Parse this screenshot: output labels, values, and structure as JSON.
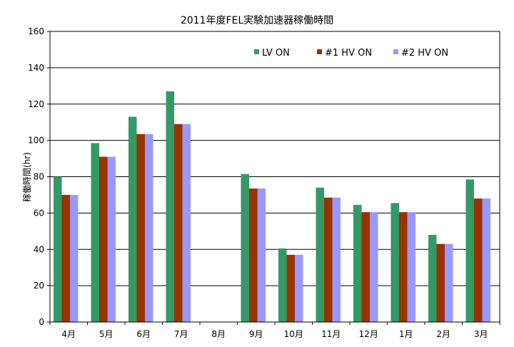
{
  "chart_data": {
    "type": "bar",
    "title": "2011年度FEL実験加速器稼働時間",
    "xlabel": "",
    "ylabel": "稼働時間(hr)",
    "ylim": [
      0,
      160
    ],
    "yticks": [
      "0",
      "20",
      "40",
      "60",
      "80",
      "100",
      "120",
      "140",
      "160"
    ],
    "grid": true,
    "legend_position": "top-right",
    "categories": [
      "4月",
      "5月",
      "6月",
      "7月",
      "8月",
      "9月",
      "10月",
      "11月",
      "12月",
      "1月",
      "2月",
      "3月"
    ],
    "series": [
      {
        "name": "LV ON",
        "color": "#339966",
        "values": [
          80,
          98.5,
          113,
          127,
          0,
          81.5,
          40.5,
          74,
          64.5,
          65.5,
          48,
          78.5
        ]
      },
      {
        "name": "#1  HV ON",
        "color": "#993300",
        "values": [
          70,
          91,
          103.5,
          109,
          0,
          73.5,
          37,
          68.5,
          60.5,
          60.5,
          43,
          68
        ]
      },
      {
        "name": "#2  HV ON",
        "color": "#9999ff",
        "values": [
          70,
          91,
          103.5,
          109,
          0,
          73.5,
          37,
          68.5,
          60.5,
          60.5,
          43,
          68
        ]
      }
    ]
  }
}
